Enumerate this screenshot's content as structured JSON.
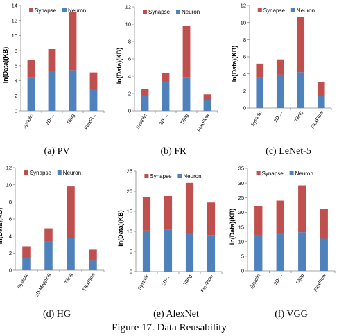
{
  "figure_caption": "Figure 17. Data Reusability",
  "colors": {
    "synapse": "#c0504d",
    "neuron": "#4f81bd"
  },
  "chart_data": [
    {
      "type": "bar",
      "stacked": true,
      "caption": "(a) PV",
      "ylabel": "ln(Data)(KB)",
      "ylim": [
        0,
        14
      ],
      "yticks": [
        0,
        2,
        4,
        6,
        8,
        10,
        12,
        14
      ],
      "categories": [
        "systolic",
        "2D-...",
        "Tiling",
        "FlexFl..."
      ],
      "series": [
        {
          "name": "Neuron",
          "values": [
            4.5,
            5.3,
            5.4,
            2.9
          ]
        },
        {
          "name": "Synapse",
          "values": [
            2.3,
            2.9,
            7.7,
            2.2
          ]
        }
      ],
      "legend": "top-right"
    },
    {
      "type": "bar",
      "stacked": true,
      "caption": "(b) FR",
      "ylabel": "ln(Data)(KB)",
      "ylim": [
        0,
        12
      ],
      "yticks": [
        0,
        2,
        4,
        6,
        8,
        10,
        12
      ],
      "categories": [
        "Systolic",
        "2D-...",
        "Tiling",
        "FlexFlow"
      ],
      "series": [
        {
          "name": "Neuron",
          "values": [
            1.8,
            3.4,
            3.9,
            1.2
          ]
        },
        {
          "name": "Synapse",
          "values": [
            0.7,
            1.0,
            5.9,
            0.7
          ]
        }
      ],
      "legend": "top-right"
    },
    {
      "type": "bar",
      "stacked": true,
      "caption": "(c) LeNet-5",
      "ylabel": "ln(Data)(KB)",
      "ylim": [
        0,
        12
      ],
      "yticks": [
        0,
        2,
        4,
        6,
        8,
        10,
        12
      ],
      "categories": [
        "Systolic",
        "2D-...",
        "Tiling",
        "FlexFlow"
      ],
      "series": [
        {
          "name": "Neuron",
          "values": [
            3.6,
            3.9,
            4.2,
            1.4
          ]
        },
        {
          "name": "Synapse",
          "values": [
            1.6,
            1.8,
            6.5,
            1.6
          ]
        }
      ],
      "legend": "top-right"
    },
    {
      "type": "bar",
      "stacked": true,
      "caption": "(d) HG",
      "ylabel": "ln(Data)(KB)",
      "ylim": [
        0,
        12
      ],
      "yticks": [
        0,
        2,
        4,
        6,
        8,
        10,
        12
      ],
      "categories": [
        "Systolic",
        "2D-Mapping",
        "Tiling",
        "FlexFlow"
      ],
      "series": [
        {
          "name": "Neuron",
          "values": [
            1.5,
            3.4,
            3.8,
            1.1
          ]
        },
        {
          "name": "Synapse",
          "values": [
            1.3,
            1.5,
            6.0,
            1.3
          ]
        }
      ],
      "legend": "top-right"
    },
    {
      "type": "bar",
      "stacked": true,
      "caption": "(e) AlexNet",
      "ylabel": "ln(Data)(KB)",
      "ylim": [
        0,
        25
      ],
      "yticks": [
        0,
        5,
        10,
        15,
        20,
        25
      ],
      "categories": [
        "Systolic",
        "2D-...",
        "Tiling",
        "FlexFlow"
      ],
      "series": [
        {
          "name": "Neuron",
          "values": [
            10.2,
            10.5,
            9.6,
            9.1
          ]
        },
        {
          "name": "Synapse",
          "values": [
            8.3,
            8.3,
            12.5,
            8.1
          ]
        }
      ],
      "legend": "top-right"
    },
    {
      "type": "bar",
      "stacked": true,
      "caption": "(f) VGG",
      "ylabel": "ln(Data)(KB)",
      "ylim": [
        0,
        35
      ],
      "yticks": [
        0,
        5,
        10,
        15,
        20,
        25,
        30,
        35
      ],
      "categories": [
        "Systolic",
        "2D-...",
        "Tiling",
        "FlexFlow"
      ],
      "series": [
        {
          "name": "Neuron",
          "values": [
            12.3,
            12.8,
            13.2,
            11.0
          ]
        },
        {
          "name": "Synapse",
          "values": [
            9.9,
            11.2,
            16.0,
            10.1
          ]
        }
      ],
      "legend": "top-right"
    }
  ]
}
